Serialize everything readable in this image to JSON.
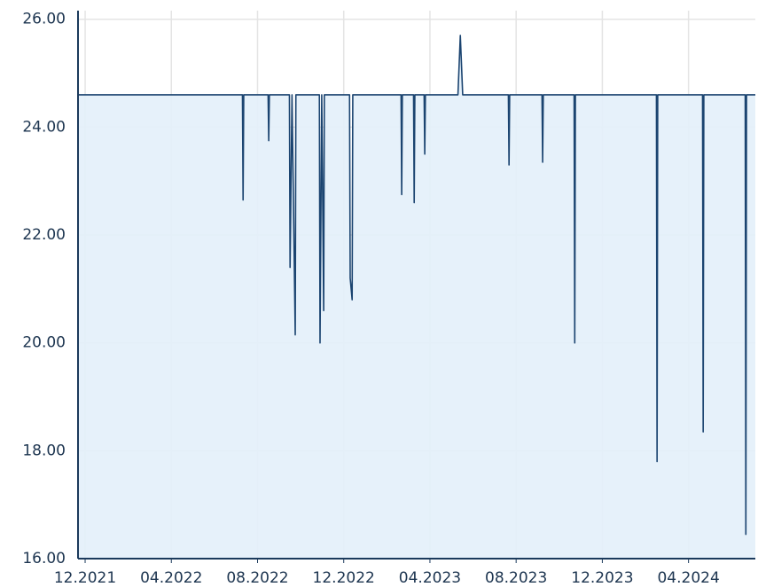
{
  "chart_data": {
    "type": "area",
    "color": "#1b4470",
    "fill": "#e3eff9",
    "grid": true,
    "xlim": [
      -0.33,
      31.1
    ],
    "ylim": [
      16,
      26.16
    ],
    "xticks": [
      {
        "value": 0,
        "label": "12.2021"
      },
      {
        "value": 4,
        "label": "04.2022"
      },
      {
        "value": 8,
        "label": "08.2022"
      },
      {
        "value": 12,
        "label": "12.2022"
      },
      {
        "value": 16,
        "label": "04.2023"
      },
      {
        "value": 20,
        "label": "08.2023"
      },
      {
        "value": 24,
        "label": "12.2023"
      },
      {
        "value": 28,
        "label": "04.2024"
      }
    ],
    "yticks": [
      {
        "value": 16,
        "label": "16.00"
      },
      {
        "value": 18,
        "label": "18.00"
      },
      {
        "value": 20,
        "label": "20.00"
      },
      {
        "value": 22,
        "label": "22.00"
      },
      {
        "value": 24,
        "label": "24.00"
      },
      {
        "value": 26,
        "label": "26.00"
      }
    ],
    "x": [
      -0.33,
      -0.32,
      7.3,
      7.33,
      7.36,
      8.49,
      8.52,
      8.55,
      9.48,
      9.51,
      9.6,
      9.75,
      9.78,
      10.87,
      10.9,
      10.98,
      11.07,
      11.1,
      12.27,
      12.3,
      12.39,
      12.42,
      14.66,
      14.69,
      14.72,
      15.24,
      15.27,
      15.3,
      15.73,
      15.76,
      15.79,
      17.3,
      17.41,
      17.52,
      19.64,
      19.67,
      19.7,
      21.2,
      21.23,
      21.26,
      22.69,
      22.72,
      22.75,
      26.51,
      26.54,
      26.57,
      28.65,
      28.68,
      28.71,
      30.63,
      30.66,
      30.69,
      31.1
    ],
    "values": [
      26.05,
      24.6,
      24.6,
      22.65,
      24.6,
      24.6,
      23.75,
      24.6,
      24.6,
      21.4,
      24.6,
      20.15,
      24.6,
      24.6,
      20.0,
      24.6,
      20.6,
      24.6,
      24.6,
      21.2,
      20.8,
      24.6,
      24.6,
      22.75,
      24.6,
      24.6,
      22.6,
      24.6,
      24.6,
      23.5,
      24.6,
      24.6,
      25.7,
      24.6,
      24.6,
      23.3,
      24.6,
      24.6,
      23.35,
      24.6,
      24.6,
      20.0,
      24.6,
      24.6,
      17.8,
      24.6,
      24.6,
      18.35,
      24.6,
      24.6,
      16.45,
      24.6,
      24.6
    ]
  }
}
